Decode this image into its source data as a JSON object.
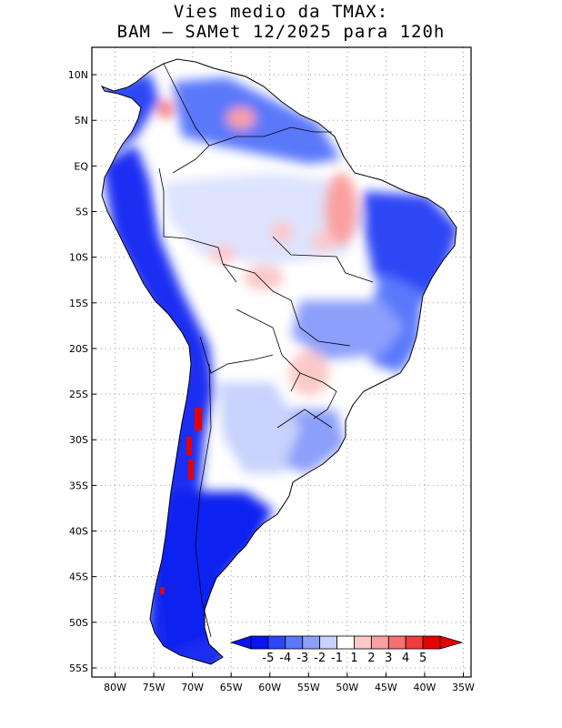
{
  "title": {
    "line1": "Vies medio da TMAX:",
    "line2": "BAM – SAMet 12/2025  para 120h"
  },
  "map": {
    "region": "South America",
    "lon_range": [
      -83,
      -34
    ],
    "lat_range": [
      -56,
      13
    ],
    "lat_ticks": [
      {
        "value": 10,
        "label": "10N"
      },
      {
        "value": 5,
        "label": "5N"
      },
      {
        "value": 0,
        "label": "EQ"
      },
      {
        "value": -5,
        "label": "5S"
      },
      {
        "value": -10,
        "label": "10S"
      },
      {
        "value": -15,
        "label": "15S"
      },
      {
        "value": -20,
        "label": "20S"
      },
      {
        "value": -25,
        "label": "25S"
      },
      {
        "value": -30,
        "label": "30S"
      },
      {
        "value": -35,
        "label": "35S"
      },
      {
        "value": -40,
        "label": "40S"
      },
      {
        "value": -45,
        "label": "45S"
      },
      {
        "value": -50,
        "label": "50S"
      },
      {
        "value": -55,
        "label": "55S"
      }
    ],
    "lon_ticks": [
      {
        "value": -80,
        "label": "80W"
      },
      {
        "value": -75,
        "label": "75W"
      },
      {
        "value": -70,
        "label": "70W"
      },
      {
        "value": -65,
        "label": "65W"
      },
      {
        "value": -60,
        "label": "60W"
      },
      {
        "value": -55,
        "label": "55W"
      },
      {
        "value": -50,
        "label": "50W"
      },
      {
        "value": -45,
        "label": "45W"
      },
      {
        "value": -40,
        "label": "40W"
      },
      {
        "value": -35,
        "label": "35W"
      }
    ]
  },
  "colorbar": {
    "labels": [
      "-5",
      "-4",
      "-3",
      "-2",
      "-1",
      "1",
      "2",
      "3",
      "4",
      "5"
    ],
    "colors": [
      "#0a14f0",
      "#2d46f5",
      "#5a78fa",
      "#8c9ffa",
      "#c8d2fc",
      "#ffffff",
      "#fcc8c8",
      "#faa0a0",
      "#f57070",
      "#f03c3c",
      "#e60000"
    ],
    "left_arrow_color": "#0a14f0",
    "right_arrow_color": "#e60000"
  }
}
